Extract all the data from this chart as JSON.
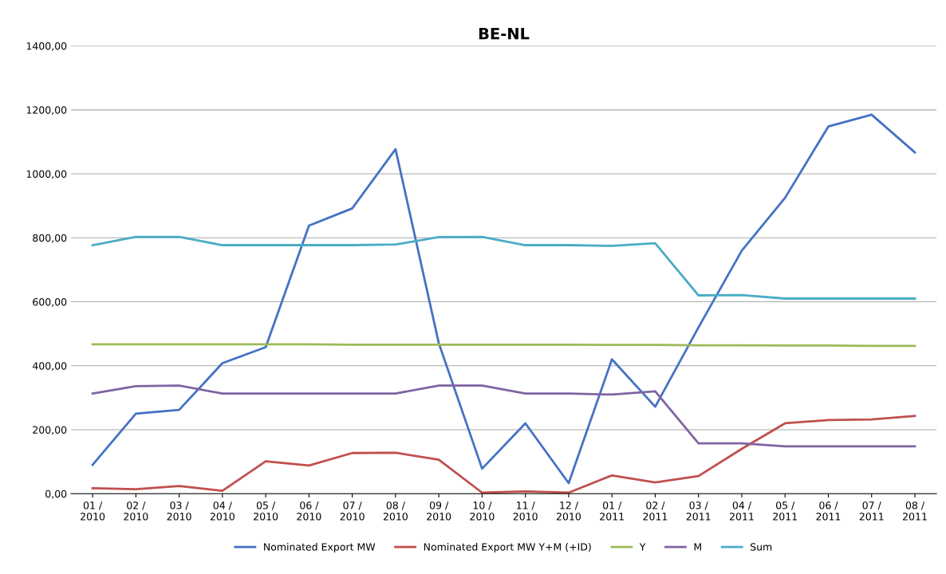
{
  "chart_data": {
    "type": "line",
    "title": "BE-NL",
    "categories": [
      "01 /\n2010",
      "02 /\n2010",
      "03 /\n2010",
      "04 /\n2010",
      "05 /\n2010",
      "06 /\n2010",
      "07 /\n2010",
      "08 /\n2010",
      "09 /\n2010",
      "10 /\n2010",
      "11 /\n2010",
      "12 /\n2010",
      "01 /\n2011",
      "02 /\n2011",
      "03 /\n2011",
      "04 /\n2011",
      "05 /\n2011",
      "06 /\n2011",
      "07 /\n2011",
      "08 /\n2011"
    ],
    "series": [
      {
        "name": "Nominated Export MW",
        "color": "#4472c4",
        "values": [
          90,
          250,
          262,
          408,
          458,
          838,
          892,
          1077,
          470,
          78,
          220,
          33,
          420,
          272,
          520,
          760,
          925,
          1148,
          1185,
          1067
        ]
      },
      {
        "name": "Nominated Export MW Y+M (+ID)",
        "color": "#c0504d",
        "values": [
          17,
          14,
          24,
          9,
          101,
          88,
          127,
          128,
          106,
          3,
          7,
          3,
          57,
          35,
          55,
          140,
          220,
          230,
          232,
          243
        ]
      },
      {
        "name": "Y",
        "color": "#9bbb59",
        "values": [
          467,
          467,
          467,
          467,
          467,
          467,
          466,
          466,
          466,
          466,
          466,
          466,
          465,
          465,
          464,
          464,
          463,
          463,
          462,
          462
        ]
      },
      {
        "name": "M",
        "color": "#8064a2",
        "values": [
          313,
          336,
          338,
          313,
          313,
          313,
          313,
          313,
          338,
          338,
          313,
          313,
          310,
          320,
          157,
          157,
          148,
          148,
          148,
          148
        ]
      },
      {
        "name": "Sum",
        "color": "#4bacc6",
        "values": [
          777,
          803,
          803,
          777,
          777,
          777,
          777,
          779,
          802,
          803,
          777,
          777,
          775,
          783,
          620,
          621,
          610,
          610,
          610,
          610
        ]
      }
    ],
    "ylim": [
      0,
      1400
    ],
    "yticks": [
      {
        "value": 0,
        "label": "0,00"
      },
      {
        "value": 200,
        "label": "200,00"
      },
      {
        "value": 400,
        "label": "400,00"
      },
      {
        "value": 600,
        "label": "600,00"
      },
      {
        "value": 800,
        "label": "800,00"
      },
      {
        "value": 1000,
        "label": "1000,00"
      },
      {
        "value": 1200,
        "label": "1200,00"
      },
      {
        "value": 1400,
        "label": "1400,00"
      }
    ],
    "grid": "y",
    "legend": "bottom",
    "marker": "none",
    "line_style": "solid"
  }
}
